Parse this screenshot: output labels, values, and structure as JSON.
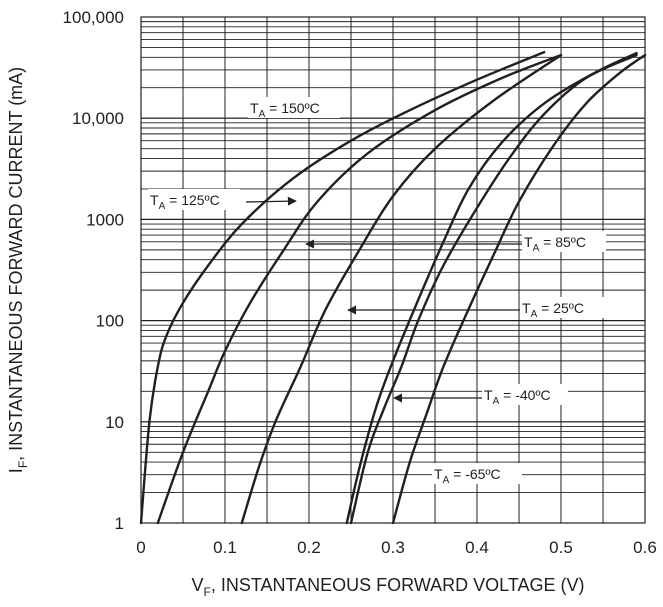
{
  "chart_data": {
    "type": "line",
    "xlabel": {
      "main": "V",
      "sub": "F",
      "rest": ", INSTANTANEOUS FORWARD VOLTAGE (V)"
    },
    "ylabel": {
      "main": "I",
      "sub": "F",
      "rest": ", INSTANTANEOUS FORWARD CURRENT (mA)"
    },
    "xlim": [
      0,
      0.6
    ],
    "ylim": [
      1,
      100000
    ],
    "yscale": "log",
    "grid": true,
    "x_ticks": [
      0,
      0.1,
      0.2,
      0.3,
      0.4,
      0.5,
      0.6
    ],
    "x_tick_labels": [
      "0",
      "0.1",
      "0.2",
      "0.3",
      "0.4",
      "0.5",
      "0.6"
    ],
    "y_ticks": [
      1,
      10,
      100,
      1000,
      10000,
      100000
    ],
    "y_tick_labels": [
      "1",
      "10",
      "100",
      "1000",
      "10,000",
      "100,000"
    ],
    "series": [
      {
        "name": "T_A = 150ºC",
        "label_main": "T",
        "label_sub": "A",
        "label_rest": " = 150ºC",
        "x": [
          0,
          0.01,
          0.02,
          0.03,
          0.05,
          0.08,
          0.12,
          0.18,
          0.25,
          0.32,
          0.4,
          0.48
        ],
        "y": [
          1,
          10,
          35,
          70,
          150,
          350,
          900,
          2500,
          6000,
          12000,
          24000,
          45000
        ]
      },
      {
        "name": "T_A = 125ºC",
        "label_main": "T",
        "label_sub": "A",
        "label_rest": " = 125ºC",
        "x": [
          0.02,
          0.05,
          0.08,
          0.1,
          0.13,
          0.17,
          0.21,
          0.27,
          0.35,
          0.43,
          0.5
        ],
        "y": [
          1,
          5,
          20,
          50,
          150,
          500,
          1500,
          4500,
          12000,
          25000,
          42000
        ]
      },
      {
        "name": "T_A = 85ºC",
        "label_main": "T",
        "label_sub": "A",
        "label_rest": " = 85ºC",
        "x": [
          0.12,
          0.14,
          0.16,
          0.19,
          0.22,
          0.26,
          0.3,
          0.35,
          0.42,
          0.5
        ],
        "y": [
          1,
          3.5,
          10,
          35,
          130,
          500,
          1700,
          5000,
          15000,
          42000
        ]
      },
      {
        "name": "T_A = 25ºC",
        "label_main": "T",
        "label_sub": "A",
        "label_rest": " = 25ºC",
        "x": [
          0.245,
          0.26,
          0.28,
          0.3,
          0.33,
          0.36,
          0.39,
          0.43,
          0.48,
          0.54,
          0.59
        ],
        "y": [
          1,
          3.5,
          14,
          40,
          160,
          600,
          2000,
          5800,
          14000,
          28000,
          44000
        ]
      },
      {
        "name": "T_A = -40ºC",
        "label_main": "T",
        "label_sub": "A",
        "label_rest": " = -40ºC",
        "x": [
          0.25,
          0.27,
          0.29,
          0.31,
          0.33,
          0.36,
          0.4,
          0.44,
          0.48,
          0.53,
          0.59
        ],
        "y": [
          1,
          5,
          14,
          35,
          100,
          350,
          1300,
          4200,
          11000,
          25000,
          42000
        ]
      },
      {
        "name": "T_A = -65ºC",
        "label_main": "T",
        "label_sub": "A",
        "label_rest": " = -65ºC",
        "x": [
          0.3,
          0.32,
          0.34,
          0.36,
          0.39,
          0.42,
          0.45,
          0.49,
          0.53,
          0.57,
          0.6
        ],
        "y": [
          1,
          4,
          12,
          35,
          130,
          450,
          1500,
          5200,
          14000,
          28000,
          42000
        ]
      }
    ],
    "annotations": [
      {
        "series": 0,
        "text_main": "T",
        "text_sub": "A",
        "text_rest": " = 150ºC",
        "arrow": false
      },
      {
        "series": 1,
        "text_main": "T",
        "text_sub": "A",
        "text_rest": " = 125ºC",
        "arrow": true
      },
      {
        "series": 2,
        "text_main": "T",
        "text_sub": "A",
        "text_rest": " = 85ºC",
        "arrow": true
      },
      {
        "series": 3,
        "text_main": "T",
        "text_sub": "A",
        "text_rest": " = 25ºC",
        "arrow": true
      },
      {
        "series": 4,
        "text_main": "T",
        "text_sub": "A",
        "text_rest": " = -40ºC",
        "arrow": true
      },
      {
        "series": 5,
        "text_main": "T",
        "text_sub": "A",
        "text_rest": " = -65ºC",
        "arrow": false
      }
    ]
  }
}
